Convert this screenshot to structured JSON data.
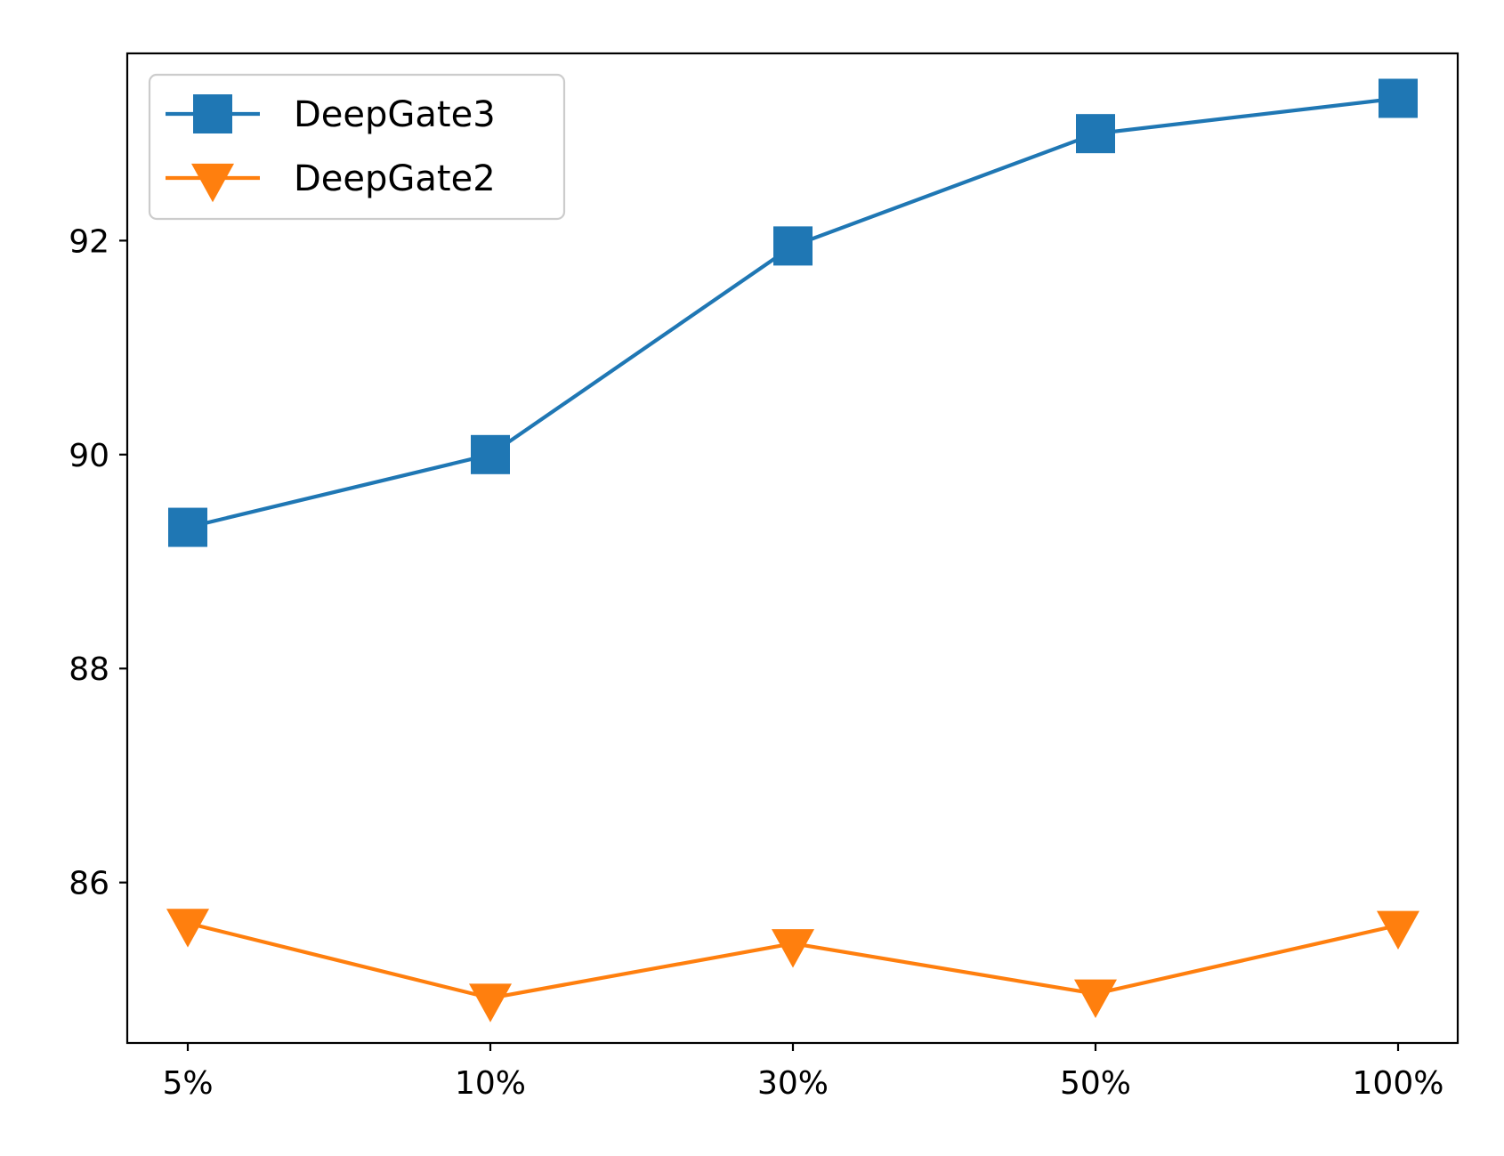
{
  "chart_data": {
    "type": "line",
    "title": "",
    "xlabel": "",
    "ylabel": "",
    "categories": [
      "5%",
      "10%",
      "30%",
      "50%",
      "100%"
    ],
    "yticks": [
      86,
      88,
      90,
      92
    ],
    "ylim": [
      84.5,
      93.75
    ],
    "grid": false,
    "legend_position": "top-left",
    "series": [
      {
        "name": "DeepGate3",
        "marker": "square",
        "color": "#1f77b4",
        "values": [
          89.32,
          90.0,
          91.95,
          93.0,
          93.33
        ]
      },
      {
        "name": "DeepGate2",
        "marker": "triangle-down",
        "color": "#ff7f0e",
        "values": [
          85.62,
          84.92,
          85.43,
          84.96,
          85.6
        ]
      }
    ]
  }
}
